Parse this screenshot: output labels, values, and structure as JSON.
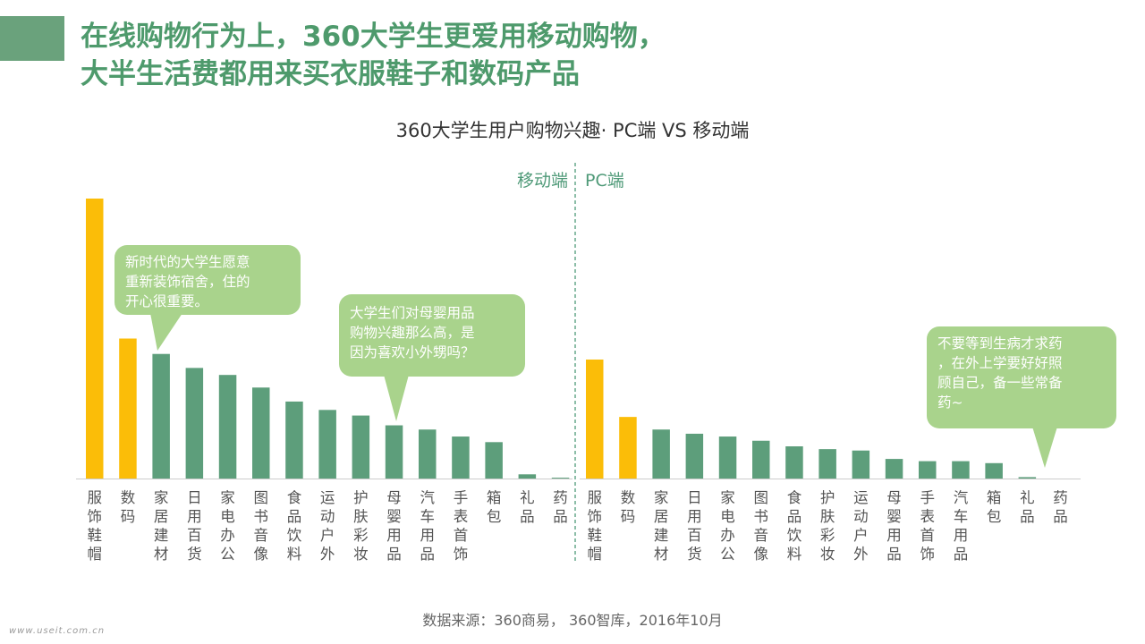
{
  "header": {
    "title_line1": "在线购物行为上，360大学生更爱用移动购物，",
    "title_line2": "大半生活费都用来买衣服鞋子和数码产品"
  },
  "chart_data": {
    "type": "bar",
    "title": "360大学生用户购物兴趣· PC端 VS 移动端",
    "sections": [
      {
        "name": "移动端",
        "categories": [
          "服饰鞋帽",
          "数码",
          "家居建材",
          "日用百货",
          "家电办公",
          "图书音像",
          "食品饮料",
          "运动户外",
          "护肤彩妆",
          "母婴用品",
          "汽车用品",
          "手表首饰",
          "箱包",
          "礼品",
          "药品"
        ],
        "values": [
          100,
          50,
          44.5,
          39.5,
          37,
          32.5,
          27.5,
          24.5,
          22.5,
          19,
          17.5,
          15,
          13,
          1.5,
          0.3
        ]
      },
      {
        "name": "PC端",
        "categories": [
          "服饰鞋帽",
          "数码",
          "家居建材",
          "日用百货",
          "家电办公",
          "图书音像",
          "食品饮料",
          "护肤彩妆",
          "运动户外",
          "母婴用品",
          "手表首饰",
          "汽车用品",
          "箱包",
          "礼品",
          "药品"
        ],
        "values": [
          42.5,
          22,
          17.5,
          16,
          15,
          13.5,
          11.5,
          10.5,
          10,
          7,
          6.2,
          6.2,
          5.5,
          0.5,
          0
        ]
      }
    ],
    "ylim": [
      0,
      100
    ],
    "highlight_count": 2,
    "colors": {
      "highlight": "#fbbd08",
      "normal": "#5d9e7b",
      "axis": "#cccccc",
      "divider": "#4f9a78",
      "section_label": "#4f9a78"
    },
    "grid": false,
    "legend": "none"
  },
  "callouts": [
    {
      "text_line1": "新时代的大学生愿意",
      "text_line2": "重新装饰宿舍，住的",
      "text_line3": "开心很重要。"
    },
    {
      "text_line1": "大学生们对母婴用品",
      "text_line2": "购物兴趣那么高，是",
      "text_line3": "因为喜欢小外甥吗？"
    },
    {
      "text_line1": "不要等到生病才求药",
      "text_line2": "，在外上学要好好照",
      "text_line3": "顾自己，备一些常备",
      "text_line4": "药~"
    }
  ],
  "footer": {
    "source": "数据来源：360商易， 360智库，2016年10月",
    "watermark": "www.useit.com.cn"
  }
}
